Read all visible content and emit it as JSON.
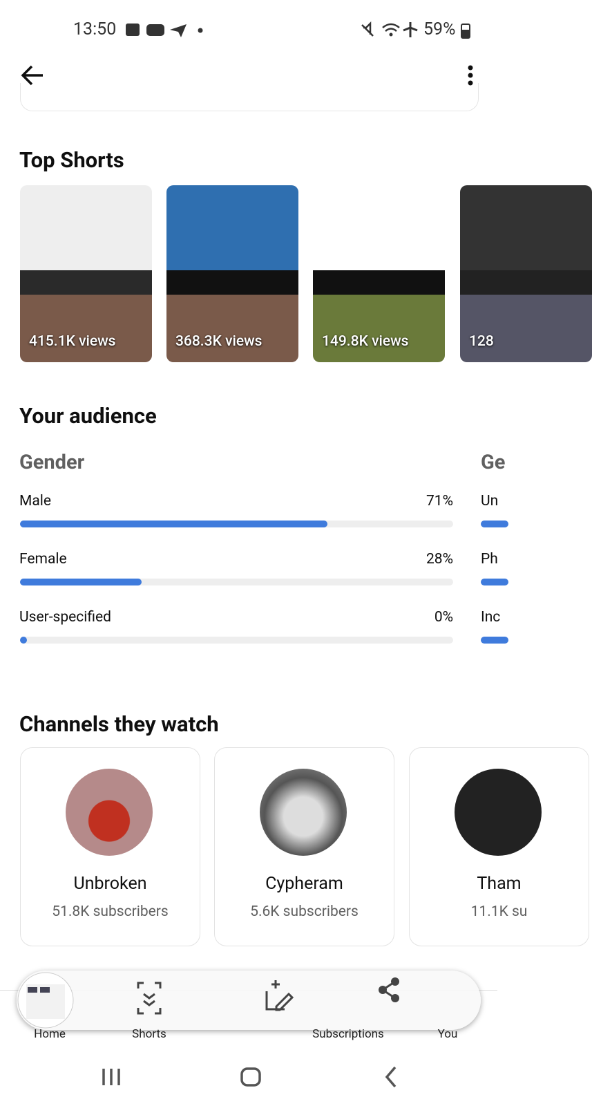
{
  "status_bar": {
    "time": "13:50",
    "battery": "59%"
  },
  "top_shorts": {
    "title": "Top Shorts",
    "items": [
      {
        "views": "415.1K views"
      },
      {
        "views": "368.3K views"
      },
      {
        "views": "149.8K views"
      },
      {
        "views": "128"
      }
    ]
  },
  "audience": {
    "title": "Your audience",
    "gender": {
      "title": "Gender",
      "rows": [
        {
          "label": "Male",
          "value": 71,
          "value_label": "71%"
        },
        {
          "label": "Female",
          "value": 28,
          "value_label": "28%"
        },
        {
          "label": "User-specified",
          "value": 0,
          "value_label": "0%"
        }
      ]
    },
    "next_column": {
      "title": "Ge",
      "rows": [
        "Un",
        "Ph",
        "Inc"
      ]
    }
  },
  "channels": {
    "title": "Channels they watch",
    "items": [
      {
        "name": "Unbroken",
        "subscribers": "51.8K subscribers"
      },
      {
        "name": "Cypheram",
        "subscribers": "5.6K subscribers"
      },
      {
        "name": "Tham",
        "subscribers": "11.1K su"
      }
    ]
  },
  "nav": {
    "items": [
      "Home",
      "Shorts",
      "Subscriptions",
      "You"
    ]
  }
}
